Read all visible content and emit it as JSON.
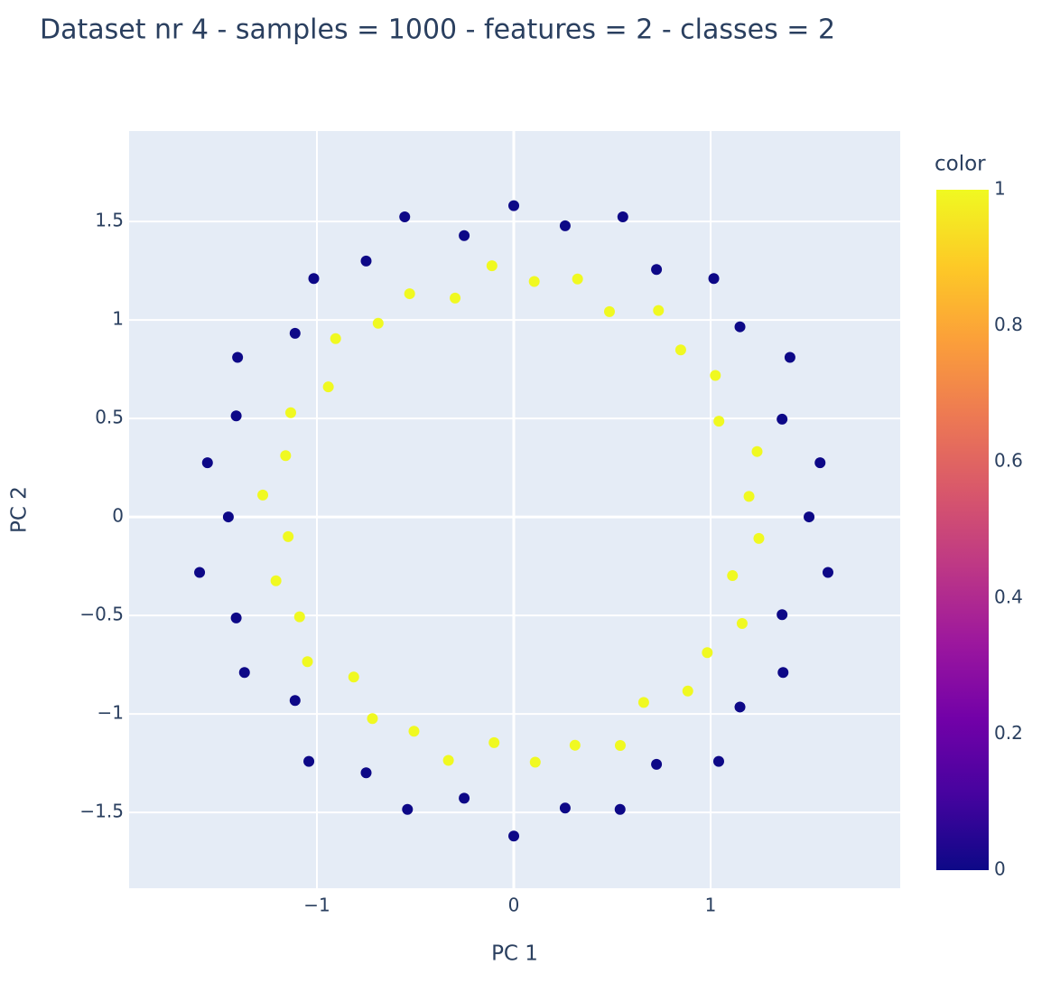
{
  "chart_data": {
    "type": "scatter",
    "title": "Dataset nr 4 - samples = 1000 - features = 2 - classes = 2",
    "xlabel": "PC 1",
    "ylabel": "PC 2",
    "xlim": [
      -1.954,
      1.963
    ],
    "ylim": [
      -1.885,
      1.959
    ],
    "xticks": [
      {
        "value": -1,
        "label": "−1"
      },
      0,
      1
    ],
    "yticks": [
      {
        "value": -1.5,
        "label": "−1.5"
      },
      {
        "value": -1,
        "label": "−1"
      },
      {
        "value": -0.5,
        "label": "−0.5"
      },
      0,
      0.5,
      1,
      1.5
    ],
    "grid": true,
    "x": [
      1.5,
      1.556,
      1.363,
      1.403,
      1.149,
      1.016,
      0.725,
      0.554,
      0.261,
      0,
      -0.252,
      -0.554,
      -0.75,
      -1.016,
      -1.111,
      -1.403,
      -1.41,
      -1.556,
      -1.45,
      -1.596,
      -1.41,
      -1.368,
      -1.111,
      -1.041,
      -0.75,
      -0.54,
      -0.252,
      0,
      0.261,
      0.54,
      0.725,
      1.041,
      1.149,
      1.368,
      1.363,
      1.596,
      1.195,
      1.236,
      1.042,
      1.024,
      0.848,
      0.735,
      0.486,
      0.324,
      0.104,
      -0.111,
      -0.298,
      -0.529,
      -0.689,
      -0.905,
      -0.942,
      -1.133,
      -1.159,
      -1.275,
      -1.146,
      -1.208,
      -1.088,
      -1.048,
      -0.813,
      -0.718,
      -0.507,
      -0.332,
      -0.1,
      0.109,
      0.311,
      0.541,
      0.66,
      0.884,
      0.983,
      1.16,
      1.111,
      1.245
    ],
    "values": [
      0,
      0.275,
      0.496,
      0.81,
      0.965,
      1.21,
      1.256,
      1.523,
      1.478,
      1.58,
      1.428,
      1.523,
      1.299,
      1.21,
      0.932,
      0.81,
      0.513,
      0.275,
      0,
      -0.282,
      -0.513,
      -0.79,
      -0.932,
      -1.241,
      -1.299,
      -1.485,
      -1.428,
      -1.62,
      -1.478,
      -1.485,
      -1.256,
      -1.241,
      -0.965,
      -0.79,
      -0.496,
      -0.282,
      0.104,
      0.332,
      0.486,
      0.718,
      0.848,
      1.048,
      1.042,
      1.208,
      1.195,
      1.275,
      1.111,
      1.133,
      0.983,
      0.905,
      0.66,
      0.529,
      0.311,
      0.111,
      -0.1,
      -0.324,
      -0.507,
      -0.735,
      -0.813,
      -1.024,
      -1.088,
      -1.236,
      -1.146,
      -1.245,
      -1.159,
      -1.16,
      -0.942,
      -0.884,
      -0.689,
      -0.541,
      -0.298,
      -0.109
    ],
    "color_values": [
      0,
      0,
      0,
      0,
      0,
      0,
      0,
      0,
      0,
      0,
      0,
      0,
      0,
      0,
      0,
      0,
      0,
      0,
      0,
      0,
      0,
      0,
      0,
      0,
      0,
      0,
      0,
      0,
      0,
      0,
      0,
      0,
      0,
      0,
      0,
      0,
      1,
      1,
      1,
      1,
      1,
      1,
      1,
      1,
      1,
      1,
      1,
      1,
      1,
      1,
      1,
      1,
      1,
      1,
      1,
      1,
      1,
      1,
      1,
      1,
      1,
      1,
      1,
      1,
      1,
      1,
      1,
      1,
      1,
      1,
      1,
      1
    ],
    "colorbar": {
      "title": "color",
      "lim": [
        0,
        1
      ],
      "ticks": [
        0,
        0.2,
        0.4,
        0.6,
        0.8,
        1
      ],
      "colorscale": [
        "#0d0887",
        "#46039f",
        "#7201a8",
        "#9c179e",
        "#bd3786",
        "#d8576b",
        "#ed7953",
        "#fb9f3a",
        "#fdca26",
        "#f0f921"
      ]
    }
  }
}
